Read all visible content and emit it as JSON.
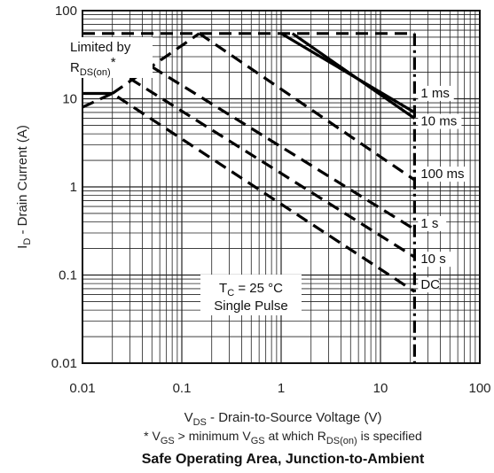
{
  "chart_data": {
    "type": "line",
    "title": "Safe Operating Area, Junction-to-Ambient",
    "footnote": {
      "prefix": "* V",
      "sub1": "GS",
      "mid": " > minimum V",
      "sub2": "GS",
      "mid2": " at which R",
      "sub3": "DS(on)",
      "suffix": " is specified"
    },
    "xlabel": {
      "main": "V",
      "sub": "DS",
      "rest": " - Drain-to-Source Voltage (V)"
    },
    "ylabel": {
      "main": "I",
      "sub": "D",
      "rest": " - Drain Current (A)"
    },
    "x_scale": "log",
    "y_scale": "log",
    "xlim": [
      0.01,
      100
    ],
    "ylim": [
      0.01,
      100
    ],
    "x_ticks": [
      "0.01",
      "0.1",
      "1",
      "10",
      "100"
    ],
    "y_ticks": [
      "0.01",
      "0.1",
      "1",
      "10",
      "100"
    ],
    "grid": true,
    "limit_annotation": {
      "line1": "Limited by",
      "line2_main": "R",
      "line2_sub": "DS(on)",
      "line2_star": "*"
    },
    "condition_annotation": {
      "line1_main": "T",
      "line1_sub": "C",
      "line1_rest": " = 25 °C",
      "line2": "Single Pulse"
    },
    "series": [
      {
        "name": "1 ms",
        "style": "solid",
        "points": [
          [
            1,
            55
          ],
          [
            22,
            7
          ]
        ]
      },
      {
        "name": "10 ms",
        "style": "solid",
        "points": [
          [
            1.3,
            55
          ],
          [
            22,
            6
          ]
        ]
      },
      {
        "name": "100 ms",
        "style": "dashed",
        "points": [
          [
            0.15,
            55
          ],
          [
            22,
            1.2
          ]
        ]
      },
      {
        "name": "1 s",
        "style": "dashed",
        "points": [
          [
            0.05,
            23
          ],
          [
            22,
            0.33
          ]
        ]
      },
      {
        "name": "10 s",
        "style": "dashed",
        "points": [
          [
            0.03,
            17
          ],
          [
            22,
            0.16
          ]
        ]
      },
      {
        "name": "DC",
        "style": "dashed",
        "points": [
          [
            0.01,
            8
          ],
          [
            0.02,
            11.5
          ],
          [
            22,
            0.065
          ]
        ]
      }
    ],
    "boundaries": [
      {
        "style": "dashed",
        "points": [
          [
            0.01,
            55
          ],
          [
            22,
            55
          ]
        ]
      },
      {
        "style": "dashed",
        "points": [
          [
            22,
            55
          ],
          [
            22,
            0.01
          ]
        ]
      },
      {
        "style": "solid",
        "points": [
          [
            0.01,
            11.5
          ],
          [
            0.02,
            11.5
          ]
        ]
      },
      {
        "style": "dashed",
        "points": [
          [
            0.02,
            11.5
          ],
          [
            0.15,
            55
          ]
        ]
      }
    ]
  }
}
